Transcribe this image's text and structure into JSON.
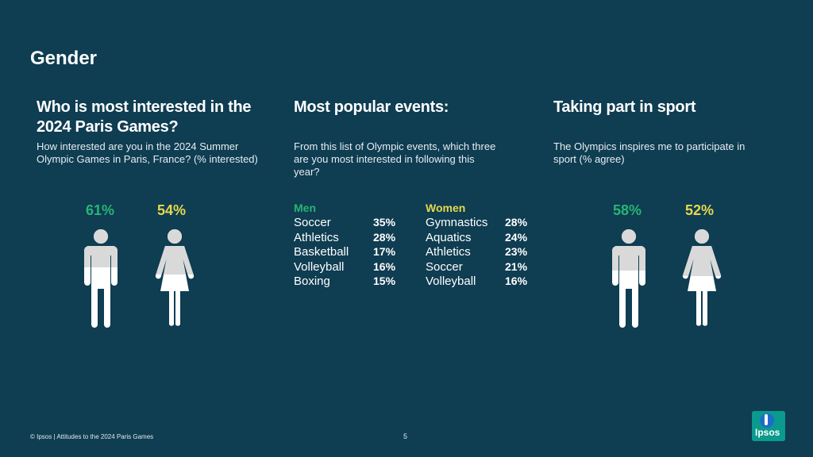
{
  "page": {
    "title": "Gender",
    "footer": "© Ipsos | Attitudes to the 2024 Paris Games",
    "page_number": "5",
    "logo_text": "Ipsos"
  },
  "colors": {
    "background": "#0f3d52",
    "men": "#27b574",
    "women": "#e5d94b",
    "figure_fill": "#d9d9d9",
    "figure_base": "#ffffff"
  },
  "interest": {
    "title_line1": "Who is most interested in the",
    "title_line2": "2024 Paris Games?",
    "subtitle_line1": "How interested are you in the 2024 Summer",
    "subtitle_line2": "Olympic Games in Paris, France? (% interested)",
    "men_pct": "61%",
    "women_pct": "54%",
    "men_value": 61,
    "women_value": 54
  },
  "events": {
    "title": "Most popular events:",
    "subtitle_line1": "From this list of Olympic events, which three",
    "subtitle_line2": "are you most interested in following this",
    "subtitle_line3": "year?",
    "men_label": "Men",
    "women_label": "Women",
    "men": [
      {
        "event": "Soccer",
        "value": "35%"
      },
      {
        "event": "Athletics",
        "value": "28%"
      },
      {
        "event": "Basketball",
        "value": "17%"
      },
      {
        "event": "Volleyball",
        "value": "16%"
      },
      {
        "event": "Boxing",
        "value": "15%"
      }
    ],
    "women": [
      {
        "event": "Gymnastics",
        "value": "28%"
      },
      {
        "event": "Aquatics",
        "value": "24%"
      },
      {
        "event": "Athletics",
        "value": "23%"
      },
      {
        "event": "Soccer",
        "value": "21%"
      },
      {
        "event": "Volleyball",
        "value": "16%"
      }
    ]
  },
  "sport": {
    "title": "Taking part in sport",
    "subtitle_line1": "The Olympics inspires me to participate in",
    "subtitle_line2": "sport (% agree)",
    "men_pct": "58%",
    "women_pct": "52%",
    "men_value": 58,
    "women_value": 52
  }
}
